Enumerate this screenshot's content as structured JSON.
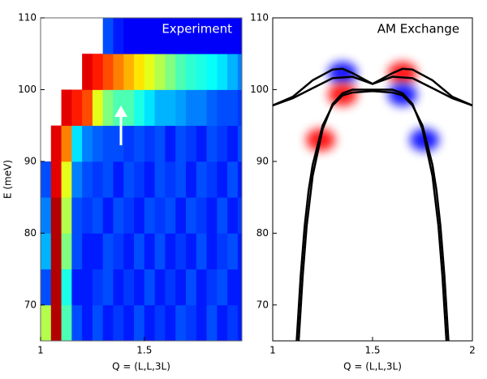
{
  "chart_data": [
    {
      "type": "heatmap",
      "title": "Experiment",
      "xlabel": "Q = (L,L,3L)",
      "ylabel": "E (meV)",
      "xlim": [
        1,
        1.97
      ],
      "ylim": [
        65,
        110
      ],
      "xticks": [
        1,
        1.5
      ],
      "yticks": [
        70,
        80,
        90,
        100,
        110
      ],
      "cmap": "jet",
      "clim": [
        0,
        1
      ],
      "x_edges": [
        1.0,
        1.05,
        1.1,
        1.15,
        1.2,
        1.25,
        1.3,
        1.35,
        1.4,
        1.45,
        1.5,
        1.55,
        1.6,
        1.65,
        1.7,
        1.75,
        1.8,
        1.85,
        1.9,
        1.95,
        1.97
      ],
      "y_edges": [
        65,
        70,
        75,
        80,
        85,
        90,
        95,
        100,
        105,
        110
      ],
      "z": [
        [
          0.55,
          0.95,
          0.45,
          0.2,
          0.15,
          0.2,
          0.15,
          0.18,
          0.15,
          0.2,
          0.15,
          0.18,
          0.15,
          0.2,
          0.18,
          0.15,
          0.2,
          0.15,
          0.18,
          0.15
        ],
        [
          0.2,
          0.95,
          0.4,
          0.15,
          0.15,
          0.18,
          0.2,
          0.15,
          0.18,
          0.15,
          0.2,
          0.15,
          0.18,
          0.15,
          0.2,
          0.15,
          0.18,
          0.2,
          0.15,
          0.15
        ],
        [
          0.3,
          0.95,
          0.5,
          0.2,
          0.15,
          0.15,
          0.2,
          0.18,
          0.15,
          0.2,
          0.15,
          0.2,
          0.15,
          0.18,
          0.15,
          0.2,
          0.15,
          0.18,
          0.2,
          0.15
        ],
        [
          0.25,
          0.95,
          0.55,
          0.2,
          0.18,
          0.2,
          0.15,
          0.2,
          0.18,
          0.15,
          0.2,
          0.18,
          0.2,
          0.15,
          0.2,
          0.18,
          0.15,
          0.2,
          0.15,
          0.18
        ],
        [
          0.2,
          0.9,
          0.6,
          0.25,
          0.2,
          0.18,
          0.2,
          0.15,
          0.2,
          0.18,
          0.15,
          0.2,
          0.18,
          0.2,
          0.15,
          0.2,
          0.18,
          0.15,
          0.2,
          0.15
        ],
        [
          null,
          0.9,
          0.75,
          0.35,
          0.25,
          0.22,
          0.2,
          0.2,
          0.18,
          0.2,
          0.18,
          0.2,
          0.15,
          0.2,
          0.18,
          0.15,
          0.2,
          0.18,
          0.15,
          0.2
        ],
        [
          null,
          null,
          0.9,
          0.85,
          0.8,
          0.6,
          0.5,
          0.45,
          0.45,
          0.4,
          0.35,
          0.3,
          0.3,
          0.28,
          0.25,
          0.25,
          0.22,
          0.2,
          0.2,
          0.18
        ],
        [
          null,
          null,
          null,
          null,
          0.9,
          0.85,
          0.8,
          0.75,
          0.7,
          0.65,
          0.6,
          0.55,
          0.5,
          0.45,
          0.42,
          0.4,
          0.38,
          0.35,
          0.3,
          0.25
        ],
        [
          null,
          null,
          null,
          null,
          null,
          null,
          0.2,
          0.15,
          0.12,
          0.12,
          0.12,
          0.12,
          0.12,
          0.12,
          0.12,
          0.12,
          0.12,
          0.12,
          0.12,
          0.12
        ]
      ]
    },
    {
      "type": "line",
      "title": "AM Exchange",
      "xlabel": "Q = (L,L,3L)",
      "xlim": [
        1,
        2
      ],
      "ylim": [
        65,
        110
      ],
      "xticks": [
        1,
        1.5,
        2
      ],
      "yticks": [
        70,
        80,
        90,
        100,
        110
      ],
      "series": [
        {
          "color": "#000000",
          "x": [
            1.12,
            1.14,
            1.16,
            1.18,
            1.2,
            1.25,
            1.3,
            1.35,
            1.4,
            1.5,
            1.6,
            1.65,
            1.7,
            1.75,
            1.8,
            1.82,
            1.84,
            1.86,
            1.88
          ],
          "y": [
            65,
            74,
            81,
            86,
            89.5,
            95,
            97.8,
            99.2,
            99.6,
            99.8,
            99.6,
            99.2,
            97.8,
            95,
            89.5,
            86,
            81,
            74,
            65
          ]
        },
        {
          "color": "#000000",
          "x": [
            1.13,
            1.15,
            1.17,
            1.2,
            1.25,
            1.3,
            1.35,
            1.4,
            1.5,
            1.6,
            1.65,
            1.7,
            1.75,
            1.8,
            1.83,
            1.85,
            1.87
          ],
          "y": [
            65,
            74,
            81,
            88,
            94.5,
            98,
            99.5,
            100,
            100,
            100,
            99.5,
            98,
            94.5,
            88,
            81,
            74,
            65
          ]
        },
        {
          "color": "#000000",
          "x": [
            1,
            1.1,
            1.2,
            1.3,
            1.35,
            1.4,
            1.5,
            1.6,
            1.65,
            1.7,
            1.8,
            1.9,
            2
          ],
          "y": [
            97.8,
            99,
            101.3,
            102.8,
            102.9,
            102.3,
            100.8,
            102.3,
            102.9,
            102.8,
            101.3,
            99,
            97.8
          ]
        },
        {
          "color": "#000000",
          "x": [
            1,
            1.1,
            1.2,
            1.3,
            1.4,
            1.5,
            1.6,
            1.7,
            1.8,
            1.9,
            2
          ],
          "y": [
            97.8,
            98.8,
            100.2,
            101.6,
            101.8,
            100.8,
            101.8,
            101.6,
            100.2,
            98.8,
            97.8
          ]
        }
      ],
      "spots": [
        {
          "x": 1.35,
          "y": 102.3,
          "color": "#0000ff"
        },
        {
          "x": 1.35,
          "y": 99.3,
          "color": "#ff0000"
        },
        {
          "x": 1.65,
          "y": 102.3,
          "color": "#ff0000"
        },
        {
          "x": 1.65,
          "y": 99.3,
          "color": "#0000ff"
        },
        {
          "x": 1.24,
          "y": 93,
          "color": "#ff0000"
        },
        {
          "x": 1.76,
          "y": 93,
          "color": "#0000ff"
        }
      ]
    }
  ]
}
